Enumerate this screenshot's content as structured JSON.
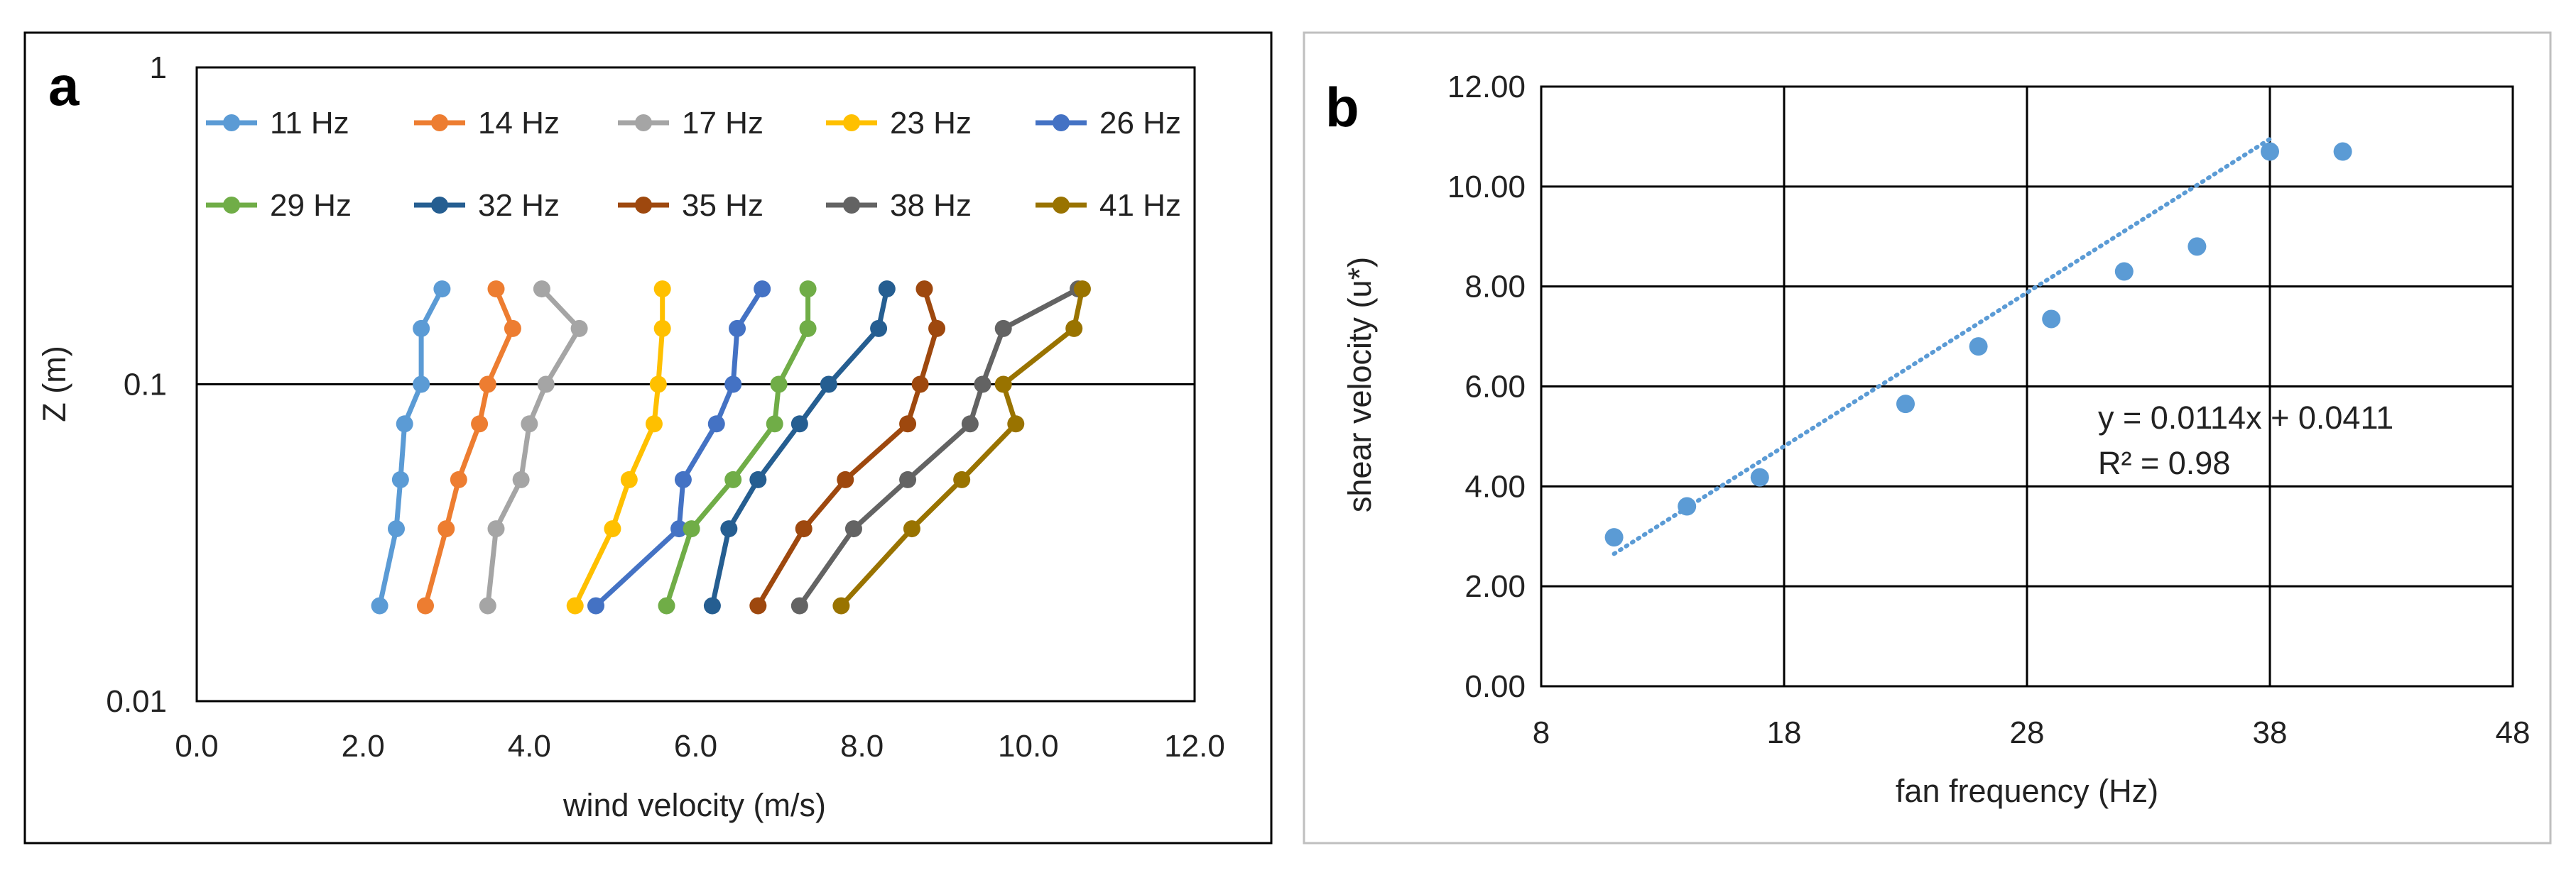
{
  "chart_data": [
    {
      "type": "line",
      "panel_label": "a",
      "title": "",
      "xlabel": "wind velocity (m/s)",
      "ylabel": "Z (m)",
      "xlim": [
        0,
        12
      ],
      "ylim": [
        0.01,
        1
      ],
      "yscale": "log",
      "x_ticks": [
        0,
        2,
        4,
        6,
        8,
        10,
        12
      ],
      "x_tick_labels": [
        "0.0",
        "2.0",
        "4.0",
        "6.0",
        "8.0",
        "10.0",
        "12.0"
      ],
      "y_ticks": [
        0.01,
        0.1,
        1
      ],
      "y_tick_labels": [
        "0.01",
        "0.1",
        "1"
      ],
      "gridlines_y": [
        0.1
      ],
      "legend_position": "top",
      "heights": [
        0.02,
        0.035,
        0.05,
        0.075,
        0.1,
        0.15,
        0.2
      ],
      "series": [
        {
          "name": "11 Hz",
          "color": "#5B9BD5",
          "values": [
            2.2,
            2.4,
            2.45,
            2.5,
            2.7,
            2.7,
            2.95
          ]
        },
        {
          "name": "14 Hz",
          "color": "#ED7D31",
          "values": [
            2.75,
            3.0,
            3.15,
            3.4,
            3.5,
            3.8,
            3.6
          ]
        },
        {
          "name": "17 Hz",
          "color": "#A5A5A5",
          "values": [
            3.5,
            3.6,
            3.9,
            4.0,
            4.2,
            4.6,
            4.15
          ]
        },
        {
          "name": "23 Hz",
          "color": "#FFC000",
          "values": [
            4.55,
            5.0,
            5.2,
            5.5,
            5.55,
            5.6,
            5.6
          ]
        },
        {
          "name": "26 Hz",
          "color": "#4472C4",
          "values": [
            4.8,
            5.8,
            5.85,
            6.25,
            6.45,
            6.5,
            6.8
          ]
        },
        {
          "name": "29 Hz",
          "color": "#70AD47",
          "values": [
            5.65,
            5.95,
            6.45,
            6.95,
            7.0,
            7.35,
            7.35
          ]
        },
        {
          "name": "32 Hz",
          "color": "#255E91",
          "values": [
            6.2,
            6.4,
            6.75,
            7.25,
            7.6,
            8.2,
            8.3
          ]
        },
        {
          "name": "35 Hz",
          "color": "#9E480E",
          "values": [
            6.75,
            7.3,
            7.8,
            8.55,
            8.7,
            8.9,
            8.75
          ]
        },
        {
          "name": "38 Hz",
          "color": "#636363",
          "values": [
            7.25,
            7.9,
            8.55,
            9.3,
            9.45,
            9.7,
            10.6
          ]
        },
        {
          "name": "41 Hz",
          "color": "#997300",
          "values": [
            7.75,
            8.6,
            9.2,
            9.85,
            9.7,
            10.55,
            10.65
          ]
        }
      ]
    },
    {
      "type": "scatter",
      "panel_label": "b",
      "title": "",
      "xlabel": "fan frequency (Hz)",
      "ylabel": "shear velocity (u*)",
      "xlim": [
        8,
        48
      ],
      "ylim": [
        0,
        12
      ],
      "x_ticks": [
        8,
        18,
        28,
        38,
        48
      ],
      "x_tick_labels": [
        "8",
        "18",
        "28",
        "38",
        "48"
      ],
      "y_ticks": [
        0,
        2,
        4,
        6,
        8,
        10,
        12
      ],
      "y_tick_labels": [
        "0.00",
        "2.00",
        "4.00",
        "6.00",
        "8.00",
        "10.00",
        "12.00"
      ],
      "grid": true,
      "point_color": "#5B9BD5",
      "points": {
        "x": [
          11,
          14,
          17,
          23,
          26,
          29,
          32,
          35,
          38,
          41
        ],
        "y": [
          2.98,
          3.6,
          4.18,
          5.65,
          6.8,
          7.35,
          8.3,
          8.8,
          10.7,
          10.7
        ]
      },
      "trendline": {
        "x": [
          11,
          38
        ],
        "y": [
          2.65,
          10.95
        ],
        "style": "dotted"
      },
      "annotations": [
        "y = 0.0114x + 0.0411",
        "R² = 0.98"
      ]
    }
  ]
}
